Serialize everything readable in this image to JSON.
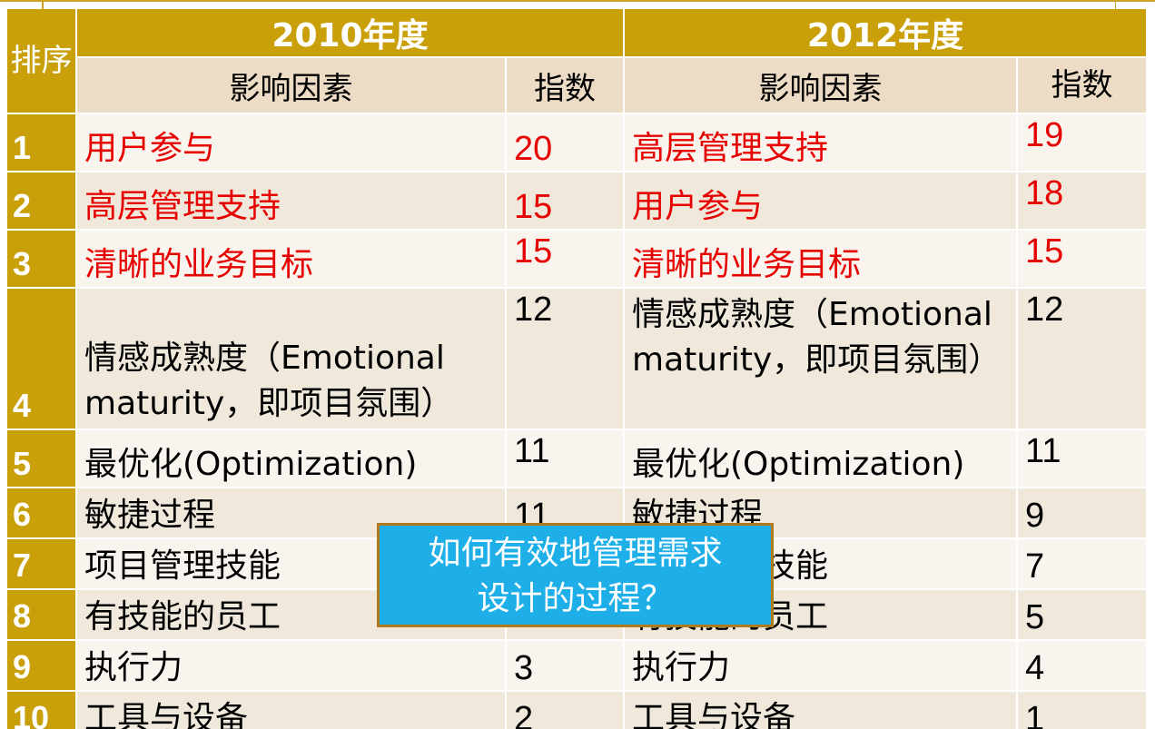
{
  "header": {
    "rank_label": "排序",
    "year_2010": "2010年度",
    "year_2012": "2012年度",
    "factor_col_2010": "影响因素",
    "index_col_2010": "指数",
    "factor_col_2012": "影响因素",
    "index_col_2012": "指数"
  },
  "rows": [
    {
      "rank": "1",
      "factor_2010": "用户参与",
      "index_2010": "20",
      "factor_2012": "高层管理支持",
      "index_2012": "19"
    },
    {
      "rank": "2",
      "factor_2010": "高层管理支持",
      "index_2010": "15",
      "factor_2012": "用户参与",
      "index_2012": "18"
    },
    {
      "rank": "3",
      "factor_2010": "清晰的业务目标",
      "index_2010": "15",
      "factor_2012": "清晰的业务目标",
      "index_2012": "15"
    },
    {
      "rank": "4",
      "factor_2010": "情感成熟度（Emotional maturity，即项目氛围）",
      "index_2010": "12",
      "factor_2012": "情感成熟度（Emotional maturity，即项目氛围）",
      "index_2012": "12"
    },
    {
      "rank": "5",
      "factor_2010": "最优化(Optimization)",
      "index_2010": "11",
      "factor_2012": "最优化(Optimization)",
      "index_2012": "11"
    },
    {
      "rank": "6",
      "factor_2010": "敏捷过程",
      "index_2010": "11",
      "factor_2012": "敏捷过程",
      "index_2012": "9"
    },
    {
      "rank": "7",
      "factor_2010": "项目管理技能",
      "index_2010": "",
      "factor_2012": "项目管理技能",
      "index_2012": "7"
    },
    {
      "rank": "8",
      "factor_2010": "有技能的员工",
      "index_2010": "",
      "factor_2012": "有技能的员工",
      "index_2012": "5"
    },
    {
      "rank": "9",
      "factor_2010": "执行力",
      "index_2010": "3",
      "factor_2012": "执行力",
      "index_2012": "4"
    },
    {
      "rank": "10",
      "factor_2010": "工具与设备",
      "index_2010": "2",
      "factor_2012": "工具与设备",
      "index_2012": "1"
    }
  ],
  "callout": {
    "line1": "如何有效地管理需求",
    "line2": "设计的过程？"
  },
  "colors": {
    "header_gold": "#c9a00a",
    "highlight_red": "#e60000",
    "callout_blue": "#1eaee8"
  }
}
